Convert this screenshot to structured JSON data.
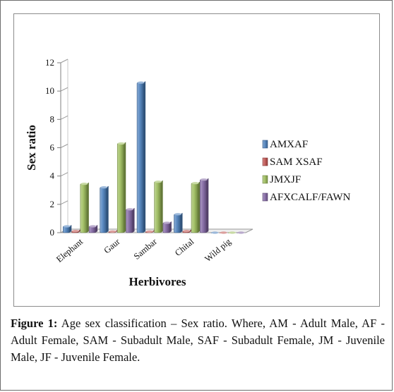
{
  "chart_data": {
    "type": "bar",
    "title": "",
    "xlabel": "Herbivores",
    "ylabel": "Sex ratio",
    "ylim": [
      0,
      12
    ],
    "yticks": [
      0,
      2,
      4,
      6,
      8,
      10,
      12
    ],
    "categories": [
      "Elephant",
      "Gaur",
      "Sambar",
      "Chital",
      "Wild pig"
    ],
    "series": [
      {
        "name": "AMXAF",
        "color": "#4a7ebb",
        "values": [
          0.45,
          3.2,
          10.6,
          1.3,
          0
        ]
      },
      {
        "name": "SAM XSAF",
        "color": "#c0504d",
        "values": [
          0.12,
          0.08,
          0.08,
          0.12,
          0
        ]
      },
      {
        "name": "JMXJF",
        "color": "#9bbb59",
        "values": [
          3.45,
          6.3,
          3.6,
          3.5,
          0
        ]
      },
      {
        "name": "AFXCALF/FAWN",
        "color": "#8064a2",
        "values": [
          0.45,
          1.65,
          0.7,
          3.75,
          0
        ]
      }
    ],
    "legend_position": "right",
    "grid": false
  },
  "caption": {
    "label": "Figure 1:",
    "text": " Age sex classification – Sex ratio. Where, AM - Adult Male, AF - Adult Female, SAM - Subadult Male, SAF - Subadult Female, JM - Juvenile Male, JF - Juvenile Female."
  }
}
